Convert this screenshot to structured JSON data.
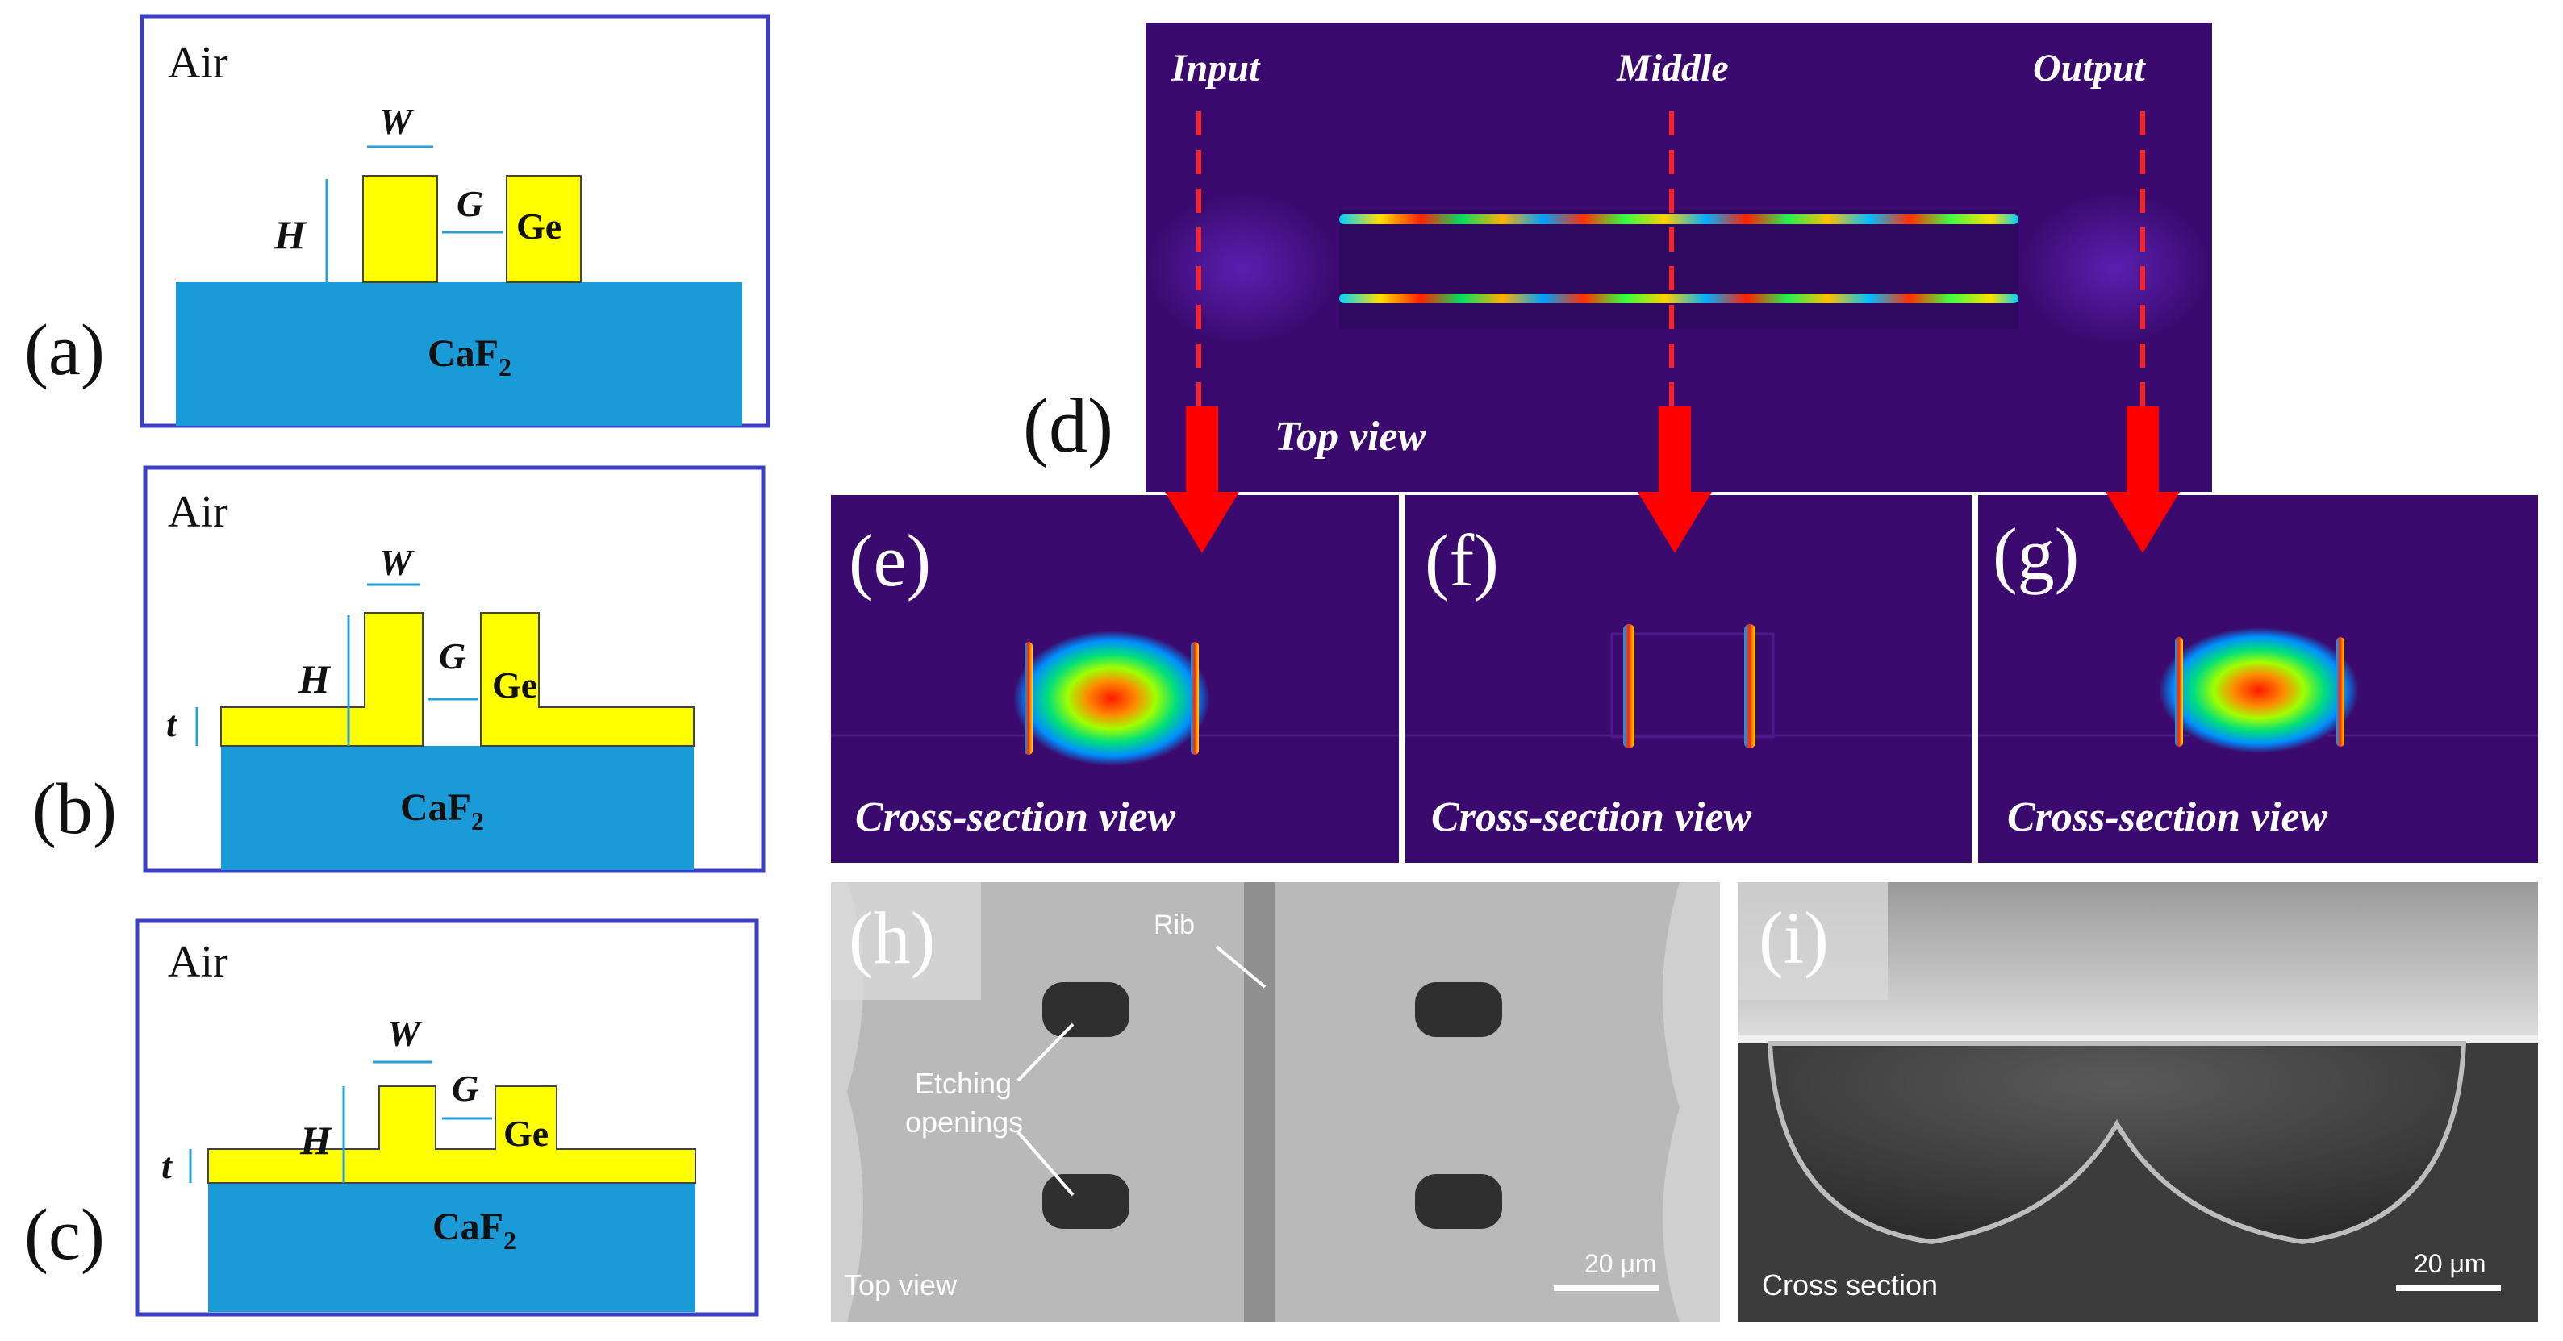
{
  "panels": {
    "a": {
      "label": "(a)",
      "air": "Air",
      "w": "W",
      "h": "H",
      "g": "G",
      "ge": "Ge",
      "substrate_main": "CaF",
      "substrate_sub": "2"
    },
    "b": {
      "label": "(b)",
      "air": "Air",
      "w": "W",
      "h": "H",
      "g": "G",
      "ge": "Ge",
      "t": "t",
      "substrate_main": "CaF",
      "substrate_sub": "2"
    },
    "c": {
      "label": "(c)",
      "air": "Air",
      "w": "W",
      "h": "H",
      "g": "G",
      "ge": "Ge",
      "t": "t",
      "substrate_main": "CaF",
      "substrate_sub": "2"
    },
    "d": {
      "label": "(d)",
      "input": "Input",
      "middle": "Middle",
      "output": "Output",
      "view": "Top view"
    },
    "e": {
      "label": "(e)",
      "view": "Cross-section view"
    },
    "f": {
      "label": "(f)",
      "view": "Cross-section view"
    },
    "g": {
      "label": "(g)",
      "view": "Cross-section view"
    },
    "h": {
      "label": "(h)",
      "rib": "Rib",
      "etching1": "Etching",
      "etching2": "openings",
      "caption": "Top view",
      "scale": "20 μm"
    },
    "i": {
      "label": "(i)",
      "caption": "Cross section",
      "scale": "20 μm"
    }
  },
  "colors": {
    "border": "#3b3fc4",
    "germanium": "#ffff00",
    "substrate": "#1a9bd7",
    "dim_arrow": "#2a9fd6",
    "sim_bg": "#3a0a6e",
    "red_arrow": "#ff0000",
    "sem_light": "#b9b9b9",
    "sem_dark": "#3c3c3c"
  }
}
